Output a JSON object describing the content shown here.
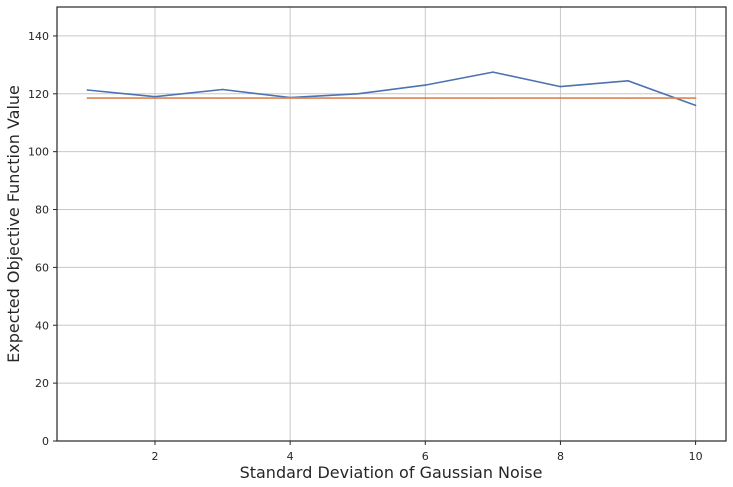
{
  "chart_data": {
    "type": "line",
    "title": "",
    "xlabel": "Standard Deviation of Gaussian Noise",
    "ylabel": "Expected Objective Function Value",
    "xlim": [
      0.55,
      10.45
    ],
    "ylim": [
      0,
      150
    ],
    "xticks": [
      2,
      4,
      6,
      8,
      10
    ],
    "yticks": [
      0,
      20,
      40,
      60,
      80,
      100,
      120,
      140
    ],
    "grid": true,
    "legend": "none",
    "x": [
      1,
      2,
      3,
      4,
      5,
      6,
      7,
      8,
      9,
      10
    ],
    "series": [
      {
        "color": "#4c72b0",
        "values": [
          121.3,
          119.0,
          121.5,
          118.7,
          120.0,
          123.0,
          127.5,
          122.5,
          124.5,
          116.0
        ]
      },
      {
        "color": "#dd8452",
        "values": [
          118.5,
          118.5,
          118.5,
          118.5,
          118.5,
          118.5,
          118.5,
          118.5,
          118.5,
          118.5
        ]
      }
    ]
  }
}
